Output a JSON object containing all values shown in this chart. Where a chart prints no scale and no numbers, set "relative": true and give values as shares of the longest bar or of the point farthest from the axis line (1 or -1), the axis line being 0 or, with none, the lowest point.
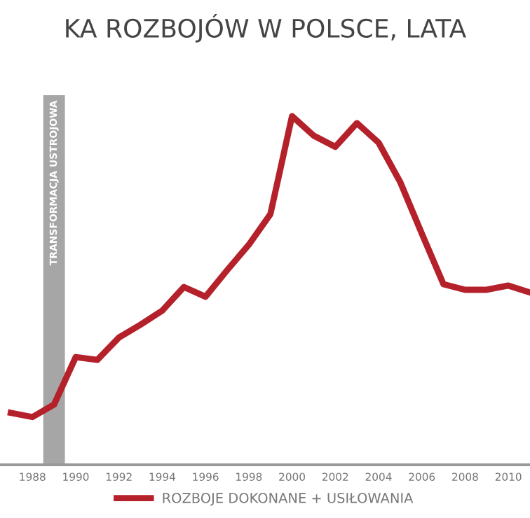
{
  "chart_data": {
    "type": "line",
    "title": "KA ROZBOJÓW W POLSCE, LATA",
    "relative": true,
    "x": [
      1987,
      1988,
      1989,
      1990,
      1991,
      1992,
      1993,
      1994,
      1995,
      1996,
      1997,
      1998,
      1999,
      2000,
      2001,
      2002,
      2003,
      2004,
      2005,
      2006,
      2007,
      2008,
      2009,
      2010,
      2011
    ],
    "xlim": [
      1986.5,
      2011
    ],
    "xticks": [
      1988,
      1990,
      1992,
      1994,
      1996,
      1998,
      2000,
      2002,
      2004,
      2006,
      2008,
      2010
    ],
    "series": [
      {
        "name": "ROZBOJE DOKONANE + USIŁOWANIA",
        "color": "#b5212b",
        "values": [
          0.149,
          0.137,
          0.173,
          0.309,
          0.301,
          0.365,
          0.402,
          0.442,
          0.51,
          0.482,
          0.558,
          0.631,
          0.719,
          1.0,
          0.944,
          0.912,
          0.98,
          0.924,
          0.811,
          0.663,
          0.518,
          0.502,
          0.502,
          0.514,
          0.494
        ]
      }
    ],
    "bands": [
      {
        "axis": "x",
        "from": 1988.5,
        "to": 1989.5,
        "label": "TRANSFORMACJA USTROJOWA",
        "color": "#a6a6a6"
      }
    ],
    "legend": "bottom",
    "grid": false,
    "marker": "none",
    "line_style": "solid"
  }
}
